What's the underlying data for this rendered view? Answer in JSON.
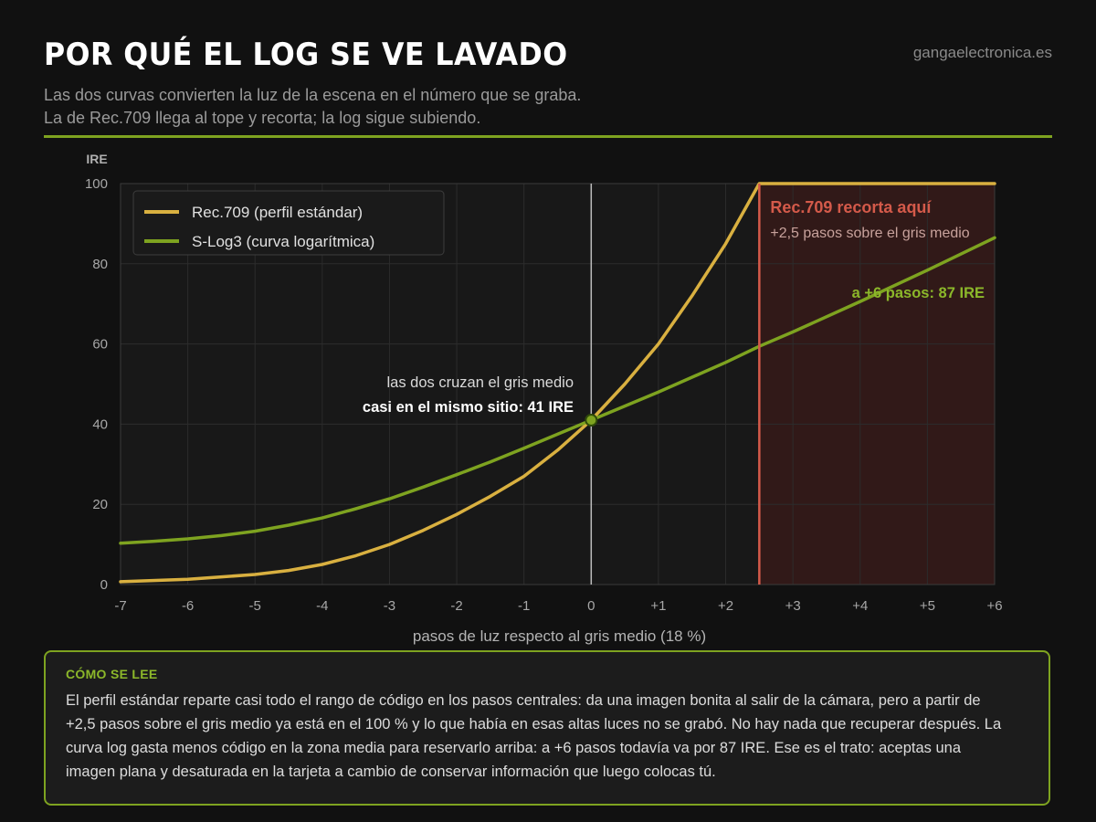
{
  "header": {
    "title": "POR QUÉ EL LOG SE VE LAVADO",
    "site": "gangaelectronica.es",
    "subtitle_line1": "Las dos curvas convierten la luz de la escena en el número que se graba.",
    "subtitle_line2": "La de Rec.709 llega al tope y recorta; la log sigue subiendo."
  },
  "colors": {
    "accent": "#7ea320",
    "rec709": "#d9b040",
    "slog3": "#7ea320",
    "clip": "#d45a4a"
  },
  "chart_data": {
    "type": "line",
    "xlabel": "pasos de luz respecto al gris medio (18 %)",
    "ylabel": "IRE",
    "xlim": [
      -7,
      6
    ],
    "ylim": [
      0,
      100
    ],
    "x_ticks": [
      -7,
      -6,
      -5,
      -4,
      -3,
      -2,
      -1,
      0,
      1,
      2,
      3,
      4,
      5,
      6
    ],
    "x_tick_labels": [
      "-7",
      "-6",
      "-5",
      "-4",
      "-3",
      "-2",
      "-1",
      "0",
      "+1",
      "+2",
      "+3",
      "+4",
      "+5",
      "+6"
    ],
    "y_ticks": [
      0,
      20,
      40,
      60,
      80,
      100
    ],
    "y_tick_labels": [
      "0",
      "20",
      "40",
      "60",
      "80",
      "100"
    ],
    "grid": true,
    "legend_position": "top-left",
    "series": [
      {
        "name": "Rec.709 (perfil estándar)",
        "color": "#d9b040",
        "x": [
          -7,
          -6,
          -5,
          -4.5,
          -4,
          -3.5,
          -3,
          -2.5,
          -2,
          -1.5,
          -1,
          -0.5,
          0,
          0.5,
          1,
          1.5,
          2,
          2.5,
          3,
          4,
          5,
          6
        ],
        "y": [
          0.7,
          1.3,
          2.5,
          3.5,
          5.0,
          7.2,
          10.0,
          13.5,
          17.5,
          22.0,
          27.0,
          33.5,
          41.0,
          50.0,
          60.0,
          72.0,
          85.0,
          100,
          100,
          100,
          100,
          100
        ]
      },
      {
        "name": "S-Log3 (curva logarítmica)",
        "color": "#7ea320",
        "x": [
          -7,
          -6.5,
          -6,
          -5.5,
          -5,
          -4.5,
          -4,
          -3.5,
          -3,
          -2.5,
          -2,
          -1.5,
          -1,
          -0.5,
          0,
          1,
          2,
          2.5,
          3,
          4,
          5,
          6
        ],
        "y": [
          10.3,
          10.8,
          11.4,
          12.2,
          13.3,
          14.8,
          16.6,
          18.9,
          21.4,
          24.3,
          27.4,
          30.6,
          34.0,
          37.5,
          41.0,
          48.0,
          55.4,
          59.4,
          63.0,
          70.6,
          78.4,
          86.5
        ]
      }
    ],
    "annotations": {
      "clip_x": 2.5,
      "clip_title": "Rec.709 recorta aquí",
      "clip_subtitle": "+2,5 pasos sobre el gris medio",
      "log_label": "a +6 pasos: 87 IRE",
      "cross_point": {
        "x": 0,
        "y": 41
      },
      "cross_line1": "las dos cruzan el gris medio",
      "cross_line2": "casi en el mismo sitio: 41 IRE"
    }
  },
  "note": {
    "title": "CÓMO SE LEE",
    "text": "El perfil estándar reparte casi todo el rango de código en los pasos centrales: da una imagen bonita al salir de la cámara, pero a partir de +2,5 pasos sobre el gris medio ya está en el 100 % y lo que había en esas altas luces no se grabó. No hay nada que recuperar después. La curva log gasta menos código en la zona media para reservarlo arriba: a +6 pasos todavía va por 87 IRE. Ese es el trato: aceptas una imagen plana y desaturada en la tarjeta a cambio de conservar información que luego colocas tú."
  }
}
